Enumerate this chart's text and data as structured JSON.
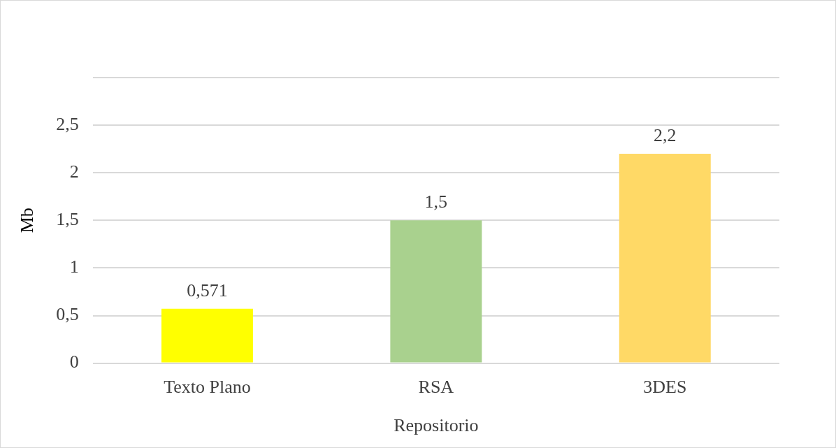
{
  "chart_data": {
    "type": "bar",
    "xlabel": "Repositorio",
    "ylabel": "Mb",
    "categories": [
      "Texto Plano",
      "RSA",
      "3DES"
    ],
    "values": [
      0.571,
      1.5,
      2.2
    ],
    "colors": [
      "#ffff00",
      "#a9d18e",
      "#ffd966"
    ],
    "value_labels": [
      "0,571",
      "1,5",
      "2,2"
    ],
    "ylim": [
      0,
      3
    ],
    "yticks": [
      0,
      {
        "value": 0.5,
        "label": "0,5"
      },
      1,
      {
        "value": 1.5,
        "label": "1,5"
      },
      2,
      {
        "value": 2.5,
        "label": "2,5"
      },
      {
        "value": 3,
        "label": null
      }
    ],
    "grid": "y",
    "legend": false
  }
}
